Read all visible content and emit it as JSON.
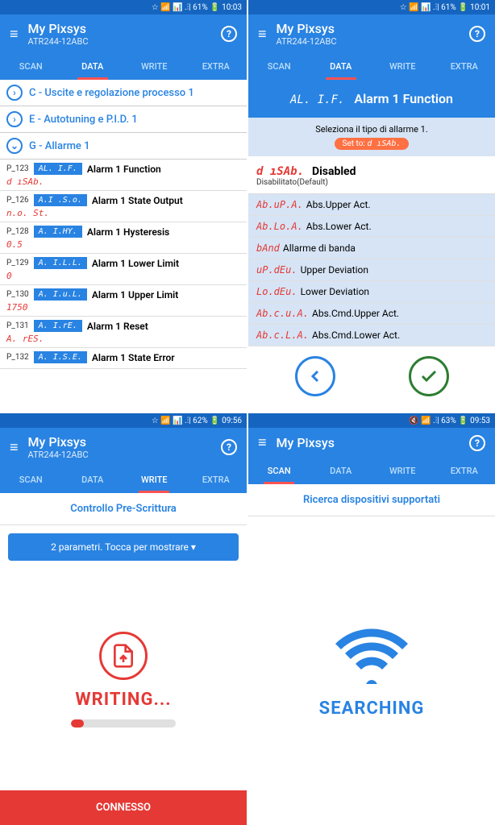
{
  "s1": {
    "status": "☆ 📶 📊 .⫶| 61% 🔋 10:03",
    "title": "My Pixsys",
    "sub": "ATR244-12ABC",
    "tabs": [
      "SCAN",
      "DATA",
      "WRITE",
      "EXTRA"
    ],
    "active": 1,
    "groups": [
      {
        "icon": "›",
        "label": "C - Uscite e regolazione processo 1"
      },
      {
        "icon": "›",
        "label": "E - Autotuning e P.I.D. 1"
      },
      {
        "icon": "⌄",
        "label": "G - Allarme 1"
      }
    ],
    "params": [
      {
        "code": "P_123",
        "badge": "AL. I.F.",
        "name": "Alarm 1 Function",
        "value": "d ıSAb."
      },
      {
        "code": "P_126",
        "badge": "A.I .S.o.",
        "name": "Alarm 1 State Output",
        "value": "n.o. St."
      },
      {
        "code": "P_128",
        "badge": "A. I.HY.",
        "name": "Alarm 1 Hysteresis",
        "value": "0.5"
      },
      {
        "code": "P_129",
        "badge": "A. I.L.L.",
        "name": "Alarm 1 Lower Limit",
        "value": "0"
      },
      {
        "code": "P_130",
        "badge": "A. I.u.L.",
        "name": "Alarm 1 Upper Limit",
        "value": "1750"
      },
      {
        "code": "P_131",
        "badge": "A. I.rE.",
        "name": "Alarm 1 Reset",
        "value": "A. rES."
      },
      {
        "code": "P_132",
        "badge": "A. I.S.E.",
        "name": "Alarm 1 State Error",
        "value": ""
      }
    ]
  },
  "s2": {
    "status": "☆ 📶 📊 .⫶| 61% 🔋 10:01",
    "title": "My Pixsys",
    "sub": "ATR244-12ABC",
    "tabs": [
      "SCAN",
      "DATA",
      "WRITE",
      "EXTRA"
    ],
    "active": 1,
    "alarm_code": "AL. I.F.",
    "alarm_title": "Alarm 1 Function",
    "hint": "Seleziona il tipo di allarme 1.",
    "set_prefix": "Set to:",
    "set_val": "d ıSAb.",
    "selected": {
      "code": "d ıSAb.",
      "name": "Disabled",
      "sub": "Disabilitato(Default)"
    },
    "options": [
      {
        "code": "Ab.uP.A.",
        "name": "Abs.Upper Act."
      },
      {
        "code": "Ab.Lo.A.",
        "name": "Abs.Lower Act."
      },
      {
        "code": "bAnd",
        "name": "Allarme di banda"
      },
      {
        "code": "uP.dEu.",
        "name": "Upper Deviation"
      },
      {
        "code": "Lo.dEu.",
        "name": "Lower Deviation"
      },
      {
        "code": "Ab.c.u.A.",
        "name": "Abs.Cmd.Upper Act."
      },
      {
        "code": "Ab.c.L.A.",
        "name": "Abs.Cmd.Lower Act."
      }
    ]
  },
  "s3": {
    "status": "☆ 📶 📊 .⫶| 62% 🔋 09:56",
    "title": "My Pixsys",
    "sub": "ATR244-12ABC",
    "tabs": [
      "SCAN",
      "DATA",
      "WRITE",
      "EXTRA"
    ],
    "active": 2,
    "bar": "Controllo Pre-Scrittura",
    "param_btn": "2 parametri. Tocca per mostrare ▾",
    "writing": "WRITING...",
    "connesso": "CONNESSO"
  },
  "s4": {
    "status": "🔇 📶 .⫶| 63% 🔋 09:53",
    "title": "My Pixsys",
    "tabs": [
      "SCAN",
      "DATA",
      "WRITE",
      "EXTRA"
    ],
    "active": 0,
    "bar": "Ricerca dispositivi supportati",
    "searching": "SEARCHING"
  }
}
